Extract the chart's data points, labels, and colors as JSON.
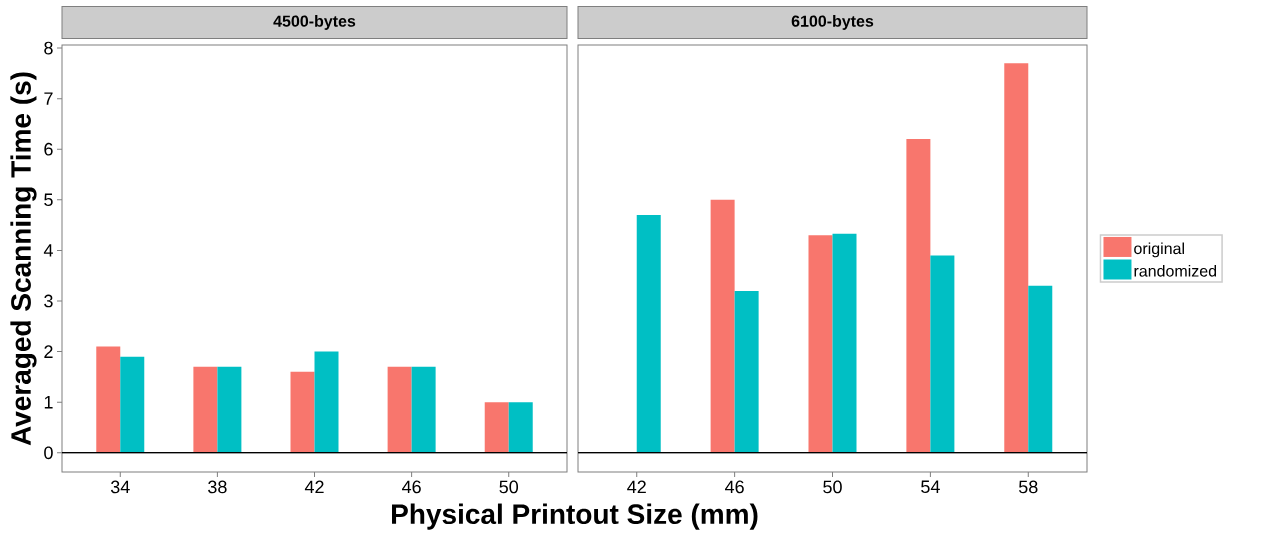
{
  "chart_data": [
    {
      "type": "bar",
      "title": "4500-bytes",
      "xlabel": "Physical Printout Size (mm)",
      "ylabel": "Averaged Scanning Time (s)",
      "categories": [
        "34",
        "38",
        "42",
        "46",
        "50"
      ],
      "series": [
        {
          "color": "#f8766d",
          "values": [
            2.1,
            1.7,
            1.6,
            1.7,
            1.0
          ]
        },
        {
          "color": "#00bfc4",
          "values": [
            1.9,
            1.7,
            2.0,
            1.7,
            1.0
          ]
        }
      ],
      "ylim": [
        -0.38,
        8.06
      ],
      "yticks": [
        0,
        1,
        2,
        3,
        4,
        5,
        6,
        7,
        8
      ],
      "ref_lines": [
        {
          "axis": "y",
          "value": 0,
          "color": "#000000"
        }
      ]
    },
    {
      "type": "bar",
      "title": "6100-bytes",
      "categories": [
        "42",
        "46",
        "50",
        "54",
        "58"
      ],
      "series": [
        {
          "name": "original",
          "color": "#f8766d",
          "values": [
            null,
            5.0,
            4.3,
            6.2,
            7.7
          ]
        },
        {
          "name": "randomized",
          "color": "#00bfc4",
          "values": [
            4.7,
            3.2,
            4.33,
            3.9,
            3.3
          ]
        }
      ],
      "ylim": [
        -0.38,
        8.06
      ],
      "yticks": [
        0,
        1,
        2,
        3,
        4,
        5,
        6,
        7,
        8
      ],
      "tick_labels": "x",
      "legend": "right",
      "ref_lines": [
        {
          "axis": "y",
          "value": 0,
          "color": "#000000"
        }
      ]
    }
  ]
}
